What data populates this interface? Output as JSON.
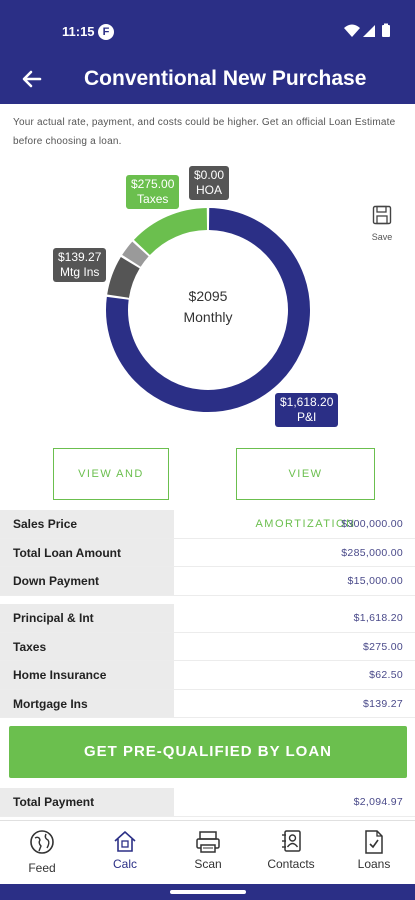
{
  "status": {
    "time": "11:15",
    "app_badge": "F"
  },
  "header": {
    "title": "Conventional New Purchase"
  },
  "disclaimer": "Your actual rate, payment, and costs could be higher. Get an official Loan Estimate before choosing a loan.",
  "chart_data": {
    "type": "pie",
    "center_value": "$2095",
    "center_label": "Monthly",
    "slices": [
      {
        "label": "P&I",
        "value_text": "$1,618.20",
        "value": 1618.2,
        "color": "#2b2f86"
      },
      {
        "label": "Mtg Ins",
        "value_text": "$139.27",
        "value": 139.27,
        "color": "#555555"
      },
      {
        "label": "Taxes",
        "value_text": "$275.00",
        "value": 275.0,
        "color": "#6bbf4e"
      },
      {
        "label": "HOA",
        "value_text": "$0.00",
        "value": 0.0,
        "color": "#555555"
      },
      {
        "label": "Home Insurance",
        "value": 62.5,
        "color": "#9a9a9a"
      }
    ]
  },
  "save": {
    "label": "Save"
  },
  "buttons": {
    "view_share": "VIEW AND SHARE",
    "view_amort": "VIEW AMORTIZATION",
    "cta": "GET PRE-QUALIFIED BY LOAN"
  },
  "table1": [
    {
      "label": "Sales Price",
      "value": "$300,000.00"
    },
    {
      "label": "Total Loan Amount",
      "value": "$285,000.00"
    },
    {
      "label": "Down Payment",
      "value": "$15,000.00"
    }
  ],
  "table2": [
    {
      "label": "Principal & Int",
      "value": "$1,618.20"
    },
    {
      "label": "Taxes",
      "value": "$275.00"
    },
    {
      "label": "Home Insurance",
      "value": "$62.50"
    },
    {
      "label": "Mortgage Ins",
      "value": "$139.27"
    }
  ],
  "total": {
    "label": "Total Payment",
    "value": "$2,094.97"
  },
  "nav": [
    {
      "label": "Feed",
      "icon": "globe-icon"
    },
    {
      "label": "Calc",
      "icon": "home-calc-icon"
    },
    {
      "label": "Scan",
      "icon": "scanner-icon"
    },
    {
      "label": "Contacts",
      "icon": "contacts-icon"
    },
    {
      "label": "Loans",
      "icon": "document-check-icon"
    }
  ],
  "colors": {
    "brand": "#2b2f86",
    "accent": "#6bbf4e"
  }
}
